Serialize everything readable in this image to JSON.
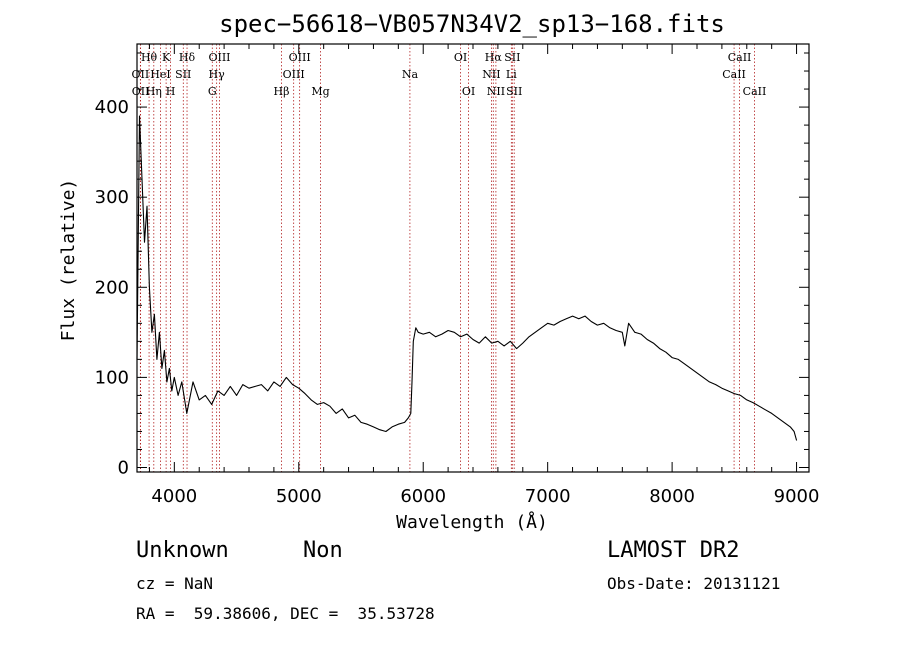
{
  "chart_data": {
    "type": "line",
    "title": "spec−56618−VB057N34V2_sp13−168.fits",
    "xlabel": "Wavelength (Å)",
    "ylabel": "Flux (relative)",
    "xlim": [
      3700,
      9100
    ],
    "ylim": [
      -5,
      470
    ],
    "x_ticks": [
      4000,
      5000,
      6000,
      7000,
      8000,
      9000
    ],
    "y_ticks": [
      0,
      100,
      200,
      300,
      400
    ],
    "grid": false,
    "series": [
      {
        "color": "#000000",
        "x": [
          3700,
          3720,
          3740,
          3760,
          3780,
          3800,
          3820,
          3840,
          3860,
          3880,
          3900,
          3920,
          3940,
          3960,
          3980,
          4000,
          4030,
          4060,
          4100,
          4150,
          4200,
          4250,
          4300,
          4350,
          4400,
          4450,
          4500,
          4550,
          4600,
          4650,
          4700,
          4750,
          4800,
          4850,
          4900,
          4950,
          5000,
          5050,
          5100,
          5150,
          5200,
          5250,
          5300,
          5350,
          5400,
          5450,
          5500,
          5550,
          5600,
          5650,
          5700,
          5750,
          5800,
          5850,
          5880,
          5900,
          5910,
          5920,
          5940,
          5960,
          6000,
          6050,
          6100,
          6150,
          6200,
          6250,
          6300,
          6350,
          6400,
          6450,
          6500,
          6550,
          6600,
          6650,
          6700,
          6750,
          6800,
          6850,
          6900,
          6950,
          7000,
          7050,
          7100,
          7150,
          7200,
          7250,
          7300,
          7350,
          7400,
          7450,
          7500,
          7550,
          7600,
          7620,
          7650,
          7700,
          7750,
          7800,
          7850,
          7900,
          7950,
          8000,
          8050,
          8100,
          8150,
          8200,
          8250,
          8300,
          8350,
          8400,
          8450,
          8500,
          8550,
          8600,
          8650,
          8700,
          8750,
          8800,
          8850,
          8900,
          8950,
          8980,
          9000
        ],
        "y": [
          120,
          390,
          320,
          250,
          290,
          200,
          150,
          170,
          120,
          150,
          110,
          130,
          95,
          110,
          85,
          100,
          80,
          95,
          60,
          95,
          75,
          80,
          70,
          85,
          80,
          90,
          80,
          92,
          88,
          90,
          92,
          85,
          95,
          90,
          100,
          92,
          88,
          82,
          75,
          70,
          72,
          68,
          60,
          65,
          55,
          58,
          50,
          48,
          45,
          42,
          40,
          45,
          48,
          50,
          55,
          60,
          95,
          140,
          155,
          150,
          148,
          150,
          145,
          148,
          152,
          150,
          145,
          148,
          142,
          138,
          145,
          138,
          140,
          135,
          140,
          132,
          138,
          145,
          150,
          155,
          160,
          158,
          162,
          165,
          168,
          165,
          168,
          162,
          158,
          160,
          155,
          152,
          150,
          135,
          160,
          150,
          148,
          142,
          138,
          132,
          128,
          122,
          120,
          115,
          110,
          105,
          100,
          95,
          92,
          88,
          85,
          82,
          80,
          75,
          72,
          68,
          64,
          60,
          55,
          50,
          45,
          40,
          30
        ]
      }
    ],
    "spectral_lines": [
      {
        "label": "Hθ",
        "x": 3797,
        "row": 0
      },
      {
        "label": "OII",
        "x": 3727,
        "row": 1
      },
      {
        "label": "OII",
        "x": 3729,
        "row": 2
      },
      {
        "label": "K",
        "x": 3934,
        "row": 0
      },
      {
        "label": "HeI",
        "x": 3889,
        "row": 1
      },
      {
        "label": "Hη",
        "x": 3835,
        "row": 2
      },
      {
        "label": "Hδ",
        "x": 4102,
        "row": 0
      },
      {
        "label": "SII",
        "x": 4072,
        "row": 1
      },
      {
        "label": "H",
        "x": 3970,
        "row": 2
      },
      {
        "label": "OIII",
        "x": 4363,
        "row": 0
      },
      {
        "label": "Hγ",
        "x": 4340,
        "row": 1
      },
      {
        "label": "G",
        "x": 4305,
        "row": 2
      },
      {
        "label": "Hβ",
        "x": 4861,
        "row": 2
      },
      {
        "label": "OIII",
        "x": 5007,
        "row": 0
      },
      {
        "label": "OIII",
        "x": 4959,
        "row": 1
      },
      {
        "label": "Mg",
        "x": 5175,
        "row": 2
      },
      {
        "label": "Na",
        "x": 5893,
        "row": 1
      },
      {
        "label": "OI",
        "x": 6300,
        "row": 0
      },
      {
        "label": "OI",
        "x": 6364,
        "row": 2
      },
      {
        "label": "Hα",
        "x": 6563,
        "row": 0
      },
      {
        "label": "NII",
        "x": 6548,
        "row": 1
      },
      {
        "label": "NII",
        "x": 6584,
        "row": 2
      },
      {
        "label": "SII",
        "x": 6716,
        "row": 0
      },
      {
        "label": "Li",
        "x": 6708,
        "row": 1
      },
      {
        "label": "SII",
        "x": 6731,
        "row": 2
      },
      {
        "label": "CaII",
        "x": 8542,
        "row": 0
      },
      {
        "label": "CaII",
        "x": 8498,
        "row": 1
      },
      {
        "label": "CaII",
        "x": 8662,
        "row": 2
      }
    ]
  },
  "info": {
    "class_label": "Unknown",
    "subclass_label": "Non",
    "survey": "LAMOST DR2",
    "cz": "cz = NaN",
    "obs_date": "Obs-Date: 20131121",
    "coords": "RA =  59.38606, DEC =  35.53728"
  }
}
